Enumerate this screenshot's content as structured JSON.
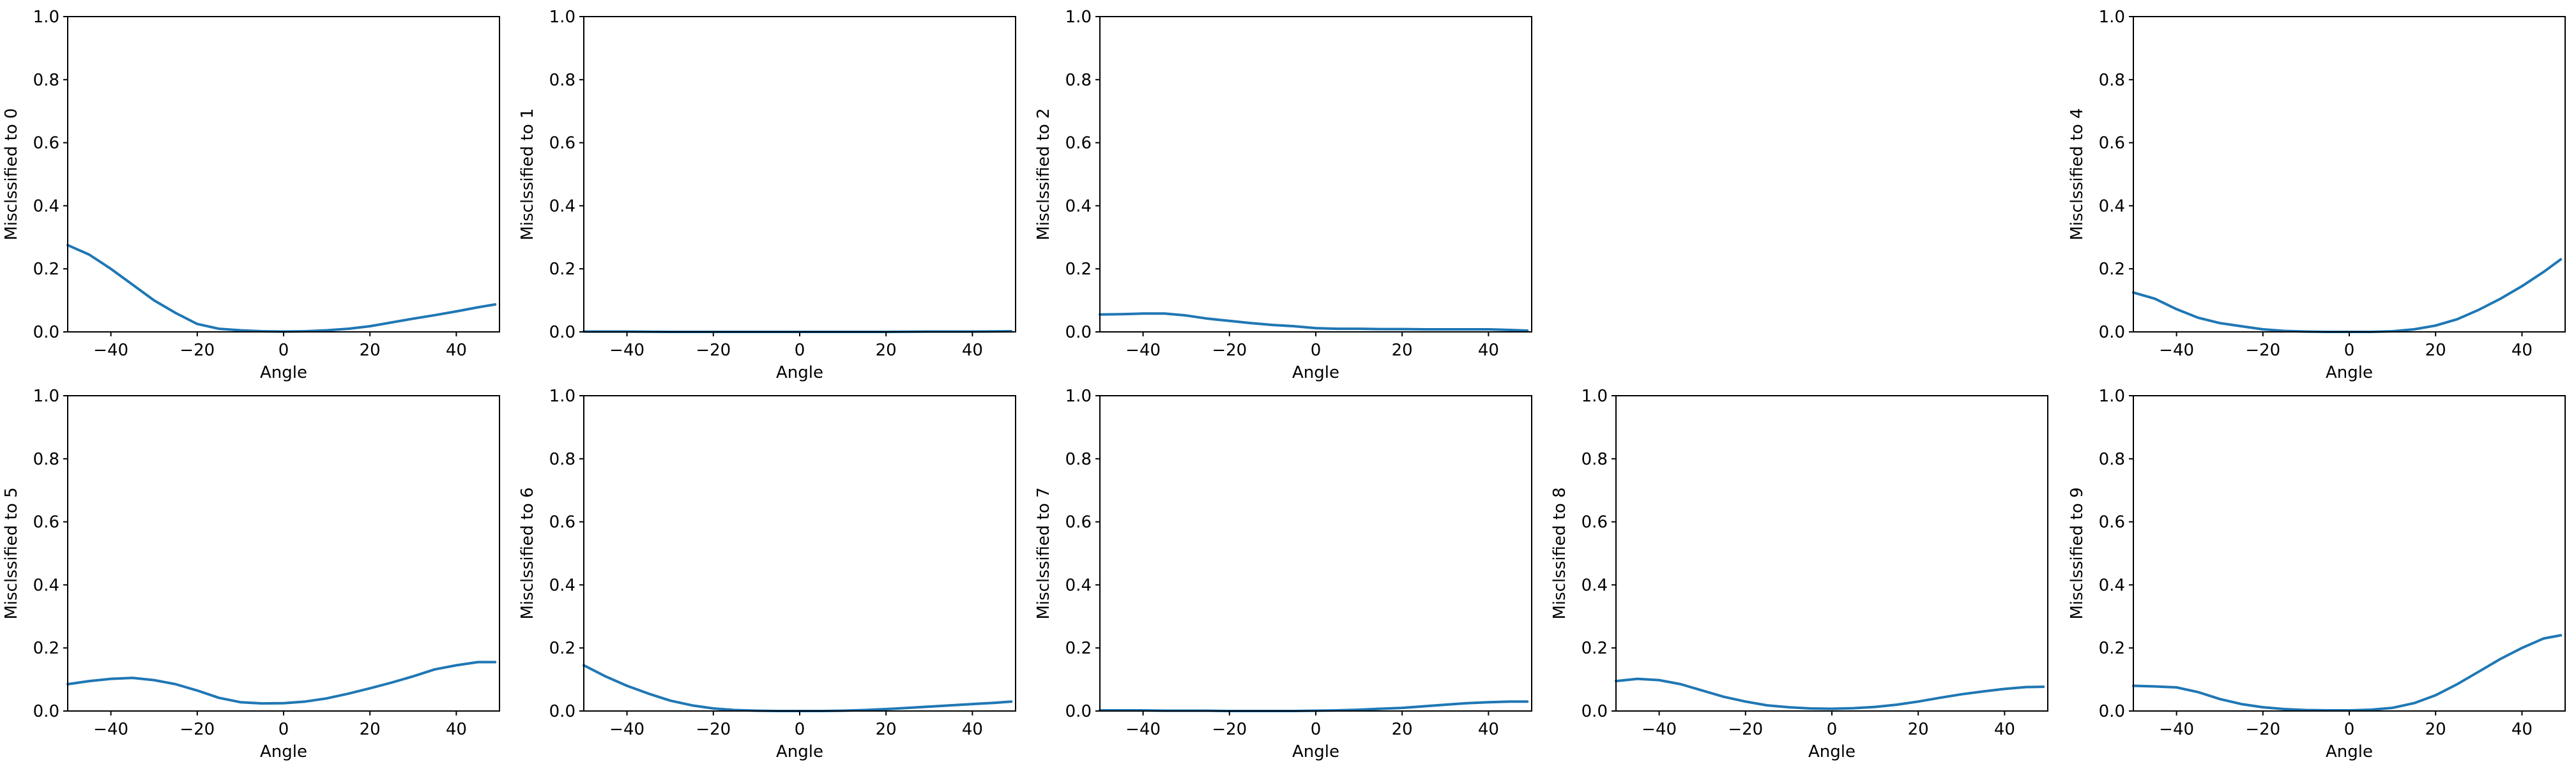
{
  "chart_data": [
    {
      "type": "line",
      "xlabel": "Angle",
      "ylabel": "Misclssified to 0",
      "xlim": [
        -50,
        50
      ],
      "ylim": [
        0,
        1
      ],
      "xticks": [
        -40,
        -20,
        0,
        20,
        40
      ],
      "yticks": [
        0.0,
        0.2,
        0.4,
        0.6,
        0.8,
        1.0
      ],
      "x": [
        -50,
        -45,
        -40,
        -35,
        -30,
        -25,
        -20,
        -15,
        -10,
        -5,
        0,
        5,
        10,
        15,
        20,
        25,
        30,
        35,
        40,
        45,
        49
      ],
      "y": [
        0.275,
        0.245,
        0.2,
        0.15,
        0.1,
        0.06,
        0.025,
        0.01,
        0.005,
        0.002,
        0.001,
        0.002,
        0.005,
        0.01,
        0.018,
        0.03,
        0.042,
        0.053,
        0.065,
        0.078,
        0.087
      ]
    },
    {
      "type": "line",
      "xlabel": "Angle",
      "ylabel": "Misclssified to 1",
      "xlim": [
        -50,
        50
      ],
      "ylim": [
        0,
        1
      ],
      "xticks": [
        -40,
        -20,
        0,
        20,
        40
      ],
      "yticks": [
        0.0,
        0.2,
        0.4,
        0.6,
        0.8,
        1.0
      ],
      "x": [
        -50,
        -40,
        -30,
        -20,
        -10,
        0,
        10,
        20,
        30,
        40,
        49
      ],
      "y": [
        0.001,
        0.001,
        0.0,
        0.0,
        0.0,
        0.0,
        0.0,
        0.0,
        0.001,
        0.001,
        0.002
      ]
    },
    {
      "type": "line",
      "xlabel": "Angle",
      "ylabel": "Misclssified to 2",
      "xlim": [
        -50,
        50
      ],
      "ylim": [
        0,
        1
      ],
      "xticks": [
        -40,
        -20,
        0,
        20,
        40
      ],
      "yticks": [
        0.0,
        0.2,
        0.4,
        0.6,
        0.8,
        1.0
      ],
      "x": [
        -50,
        -45,
        -40,
        -35,
        -30,
        -25,
        -20,
        -15,
        -10,
        -5,
        0,
        5,
        10,
        15,
        20,
        25,
        30,
        35,
        40,
        45,
        49
      ],
      "y": [
        0.055,
        0.056,
        0.058,
        0.058,
        0.052,
        0.042,
        0.035,
        0.028,
        0.022,
        0.018,
        0.012,
        0.01,
        0.01,
        0.009,
        0.009,
        0.008,
        0.008,
        0.008,
        0.008,
        0.006,
        0.004
      ]
    },
    {
      "type": "line",
      "xlabel": "Angle",
      "ylabel": "Misclssified to 4",
      "xlim": [
        -50,
        50
      ],
      "ylim": [
        0,
        1
      ],
      "xticks": [
        -40,
        -20,
        0,
        20,
        40
      ],
      "yticks": [
        0.0,
        0.2,
        0.4,
        0.6,
        0.8,
        1.0
      ],
      "x": [
        -50,
        -45,
        -40,
        -35,
        -30,
        -25,
        -20,
        -15,
        -10,
        -5,
        0,
        5,
        10,
        15,
        20,
        25,
        30,
        35,
        40,
        45,
        49
      ],
      "y": [
        0.125,
        0.105,
        0.072,
        0.045,
        0.028,
        0.018,
        0.008,
        0.003,
        0.001,
        0.0,
        0.0,
        0.0,
        0.002,
        0.008,
        0.02,
        0.04,
        0.07,
        0.105,
        0.145,
        0.19,
        0.23
      ]
    },
    {
      "type": "line",
      "xlabel": "Angle",
      "ylabel": "Misclssified to 5",
      "xlim": [
        -50,
        50
      ],
      "ylim": [
        0,
        1
      ],
      "xticks": [
        -40,
        -20,
        0,
        20,
        40
      ],
      "yticks": [
        0.0,
        0.2,
        0.4,
        0.6,
        0.8,
        1.0
      ],
      "x": [
        -50,
        -45,
        -40,
        -35,
        -30,
        -25,
        -20,
        -15,
        -10,
        -5,
        0,
        5,
        10,
        15,
        20,
        25,
        30,
        35,
        40,
        45,
        49
      ],
      "y": [
        0.085,
        0.095,
        0.102,
        0.105,
        0.098,
        0.085,
        0.065,
        0.042,
        0.028,
        0.024,
        0.025,
        0.03,
        0.04,
        0.055,
        0.072,
        0.09,
        0.11,
        0.132,
        0.145,
        0.155,
        0.155
      ]
    },
    {
      "type": "line",
      "xlabel": "Angle",
      "ylabel": "Misclssified to 6",
      "xlim": [
        -50,
        50
      ],
      "ylim": [
        0,
        1
      ],
      "xticks": [
        -40,
        -20,
        0,
        20,
        40
      ],
      "yticks": [
        0.0,
        0.2,
        0.4,
        0.6,
        0.8,
        1.0
      ],
      "x": [
        -50,
        -45,
        -40,
        -35,
        -30,
        -25,
        -20,
        -15,
        -10,
        -5,
        0,
        5,
        10,
        15,
        20,
        25,
        30,
        35,
        40,
        45,
        49
      ],
      "y": [
        0.145,
        0.11,
        0.08,
        0.055,
        0.033,
        0.018,
        0.008,
        0.003,
        0.001,
        0.0,
        0.0,
        0.0,
        0.001,
        0.003,
        0.006,
        0.01,
        0.014,
        0.018,
        0.022,
        0.026,
        0.03
      ]
    },
    {
      "type": "line",
      "xlabel": "Angle",
      "ylabel": "Misclssified to 7",
      "xlim": [
        -50,
        50
      ],
      "ylim": [
        0,
        1
      ],
      "xticks": [
        -40,
        -20,
        0,
        20,
        40
      ],
      "yticks": [
        0.0,
        0.2,
        0.4,
        0.6,
        0.8,
        1.0
      ],
      "x": [
        -50,
        -45,
        -40,
        -35,
        -30,
        -25,
        -20,
        -15,
        -10,
        -5,
        0,
        5,
        10,
        15,
        20,
        25,
        30,
        35,
        40,
        45,
        49
      ],
      "y": [
        0.002,
        0.002,
        0.002,
        0.001,
        0.001,
        0.001,
        0.0,
        0.0,
        0.0,
        0.0,
        0.001,
        0.002,
        0.004,
        0.007,
        0.01,
        0.015,
        0.02,
        0.025,
        0.028,
        0.03,
        0.03
      ]
    },
    {
      "type": "line",
      "xlabel": "Angle",
      "ylabel": "Misclssified to 8",
      "xlim": [
        -50,
        50
      ],
      "ylim": [
        0,
        1
      ],
      "xticks": [
        -40,
        -20,
        0,
        20,
        40
      ],
      "yticks": [
        0.0,
        0.2,
        0.4,
        0.6,
        0.8,
        1.0
      ],
      "x": [
        -50,
        -45,
        -40,
        -35,
        -30,
        -25,
        -20,
        -15,
        -10,
        -5,
        0,
        5,
        10,
        15,
        20,
        25,
        30,
        35,
        40,
        45,
        49
      ],
      "y": [
        0.095,
        0.102,
        0.098,
        0.085,
        0.065,
        0.045,
        0.03,
        0.018,
        0.012,
        0.008,
        0.007,
        0.009,
        0.013,
        0.02,
        0.03,
        0.042,
        0.053,
        0.062,
        0.07,
        0.076,
        0.077
      ]
    },
    {
      "type": "line",
      "xlabel": "Angle",
      "ylabel": "Misclssified to 9",
      "xlim": [
        -50,
        50
      ],
      "ylim": [
        0,
        1
      ],
      "xticks": [
        -40,
        -20,
        0,
        20,
        40
      ],
      "yticks": [
        0.0,
        0.2,
        0.4,
        0.6,
        0.8,
        1.0
      ],
      "x": [
        -50,
        -45,
        -40,
        -35,
        -30,
        -25,
        -20,
        -15,
        -10,
        -5,
        0,
        5,
        10,
        15,
        20,
        25,
        30,
        35,
        40,
        45,
        49
      ],
      "y": [
        0.08,
        0.078,
        0.075,
        0.06,
        0.038,
        0.022,
        0.012,
        0.006,
        0.003,
        0.002,
        0.002,
        0.004,
        0.01,
        0.025,
        0.05,
        0.085,
        0.125,
        0.165,
        0.2,
        0.23,
        0.24
      ]
    }
  ]
}
